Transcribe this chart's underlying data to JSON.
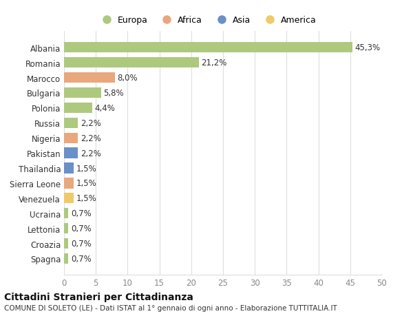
{
  "countries": [
    "Albania",
    "Romania",
    "Marocco",
    "Bulgaria",
    "Polonia",
    "Russia",
    "Nigeria",
    "Pakistan",
    "Thailandia",
    "Sierra Leone",
    "Venezuela",
    "Ucraina",
    "Lettonia",
    "Croazia",
    "Spagna"
  ],
  "values": [
    45.3,
    21.2,
    8.0,
    5.8,
    4.4,
    2.2,
    2.2,
    2.2,
    1.5,
    1.5,
    1.5,
    0.7,
    0.7,
    0.7,
    0.7
  ],
  "labels": [
    "45,3%",
    "21,2%",
    "8,0%",
    "5,8%",
    "4,4%",
    "2,2%",
    "2,2%",
    "2,2%",
    "1,5%",
    "1,5%",
    "1,5%",
    "0,7%",
    "0,7%",
    "0,7%",
    "0,7%"
  ],
  "continents": [
    "Europa",
    "Europa",
    "Africa",
    "Europa",
    "Europa",
    "Europa",
    "Africa",
    "Asia",
    "Asia",
    "Africa",
    "America",
    "Europa",
    "Europa",
    "Europa",
    "Europa"
  ],
  "continent_colors": {
    "Europa": "#adc97e",
    "Africa": "#e8a87c",
    "Asia": "#6b8fc9",
    "America": "#f0c96a"
  },
  "legend_order": [
    "Europa",
    "Africa",
    "Asia",
    "America"
  ],
  "title1": "Cittadini Stranieri per Cittadinanza",
  "title2": "COMUNE DI SOLETO (LE) - Dati ISTAT al 1° gennaio di ogni anno - Elaborazione TUTTITALIA.IT",
  "xlim": [
    0,
    50
  ],
  "xticks": [
    0,
    5,
    10,
    15,
    20,
    25,
    30,
    35,
    40,
    45,
    50
  ],
  "background_color": "#ffffff",
  "grid_color": "#dddddd",
  "label_fontsize": 8.5,
  "tick_fontsize": 8.5,
  "title1_fontsize": 10,
  "title2_fontsize": 7.5
}
